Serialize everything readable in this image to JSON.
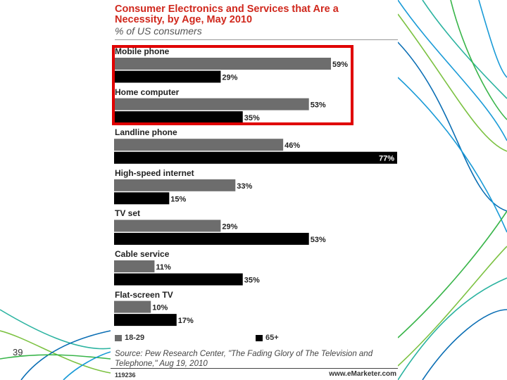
{
  "slide": {
    "number": "39"
  },
  "chart_data": {
    "type": "bar",
    "orientation": "horizontal",
    "title_lines": [
      "Consumer Electronics and Services that Are a",
      "Necessity, by Age, May 2010"
    ],
    "subtitle": "% of US consumers",
    "categories": [
      "Mobile phone",
      "Home computer",
      "Landline phone",
      "High-speed internet",
      "TV set",
      "Cable service",
      "Flat-screen TV"
    ],
    "series": [
      {
        "name": "18-29",
        "values": [
          59,
          53,
          46,
          33,
          29,
          11,
          10
        ],
        "color": "#6d6d6d"
      },
      {
        "name": "65+",
        "values": [
          29,
          35,
          77,
          15,
          53,
          35,
          17
        ],
        "color": "#000000"
      }
    ],
    "value_suffix": "%",
    "xlim": [
      0,
      77
    ],
    "legend_position": "bottom-left",
    "grid": false,
    "highlight": [
      "Mobile phone",
      "Home computer"
    ],
    "highlight_color": "#e00000"
  },
  "source": "Source: Pew Research Center, \"The Fading Glory of The Television and Telephone,\" Aug 19, 2010",
  "chart_id": "119236",
  "brand": "www.eMarketer.com"
}
